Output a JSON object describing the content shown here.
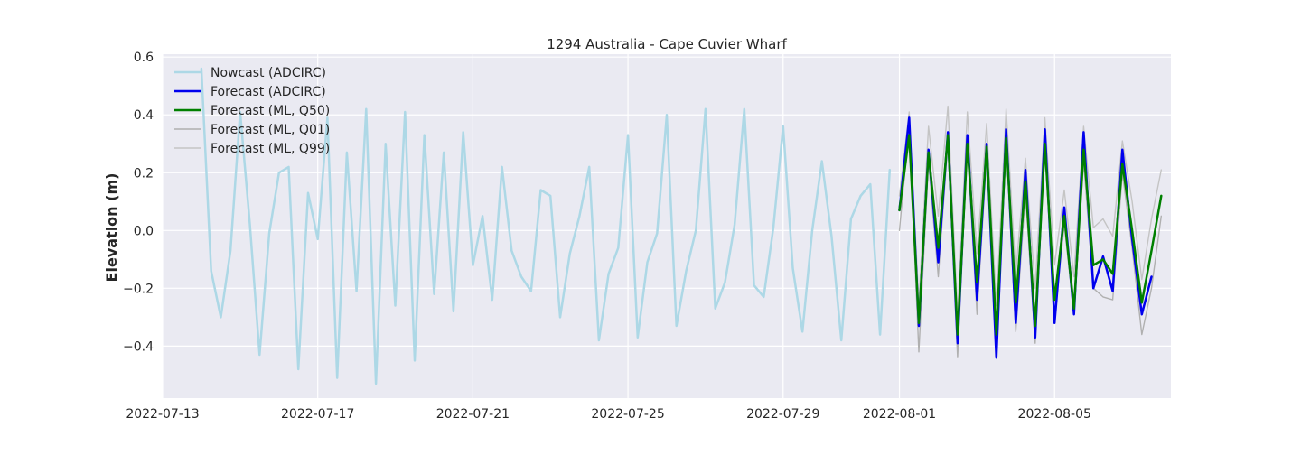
{
  "chart_data": {
    "type": "line",
    "title": "1294 Australia - Cape Cuvier Wharf",
    "xlabel": "",
    "ylabel": "Elevation (m)",
    "xlim": [
      "2022-07-13T00:00",
      "2022-08-08T00:00"
    ],
    "ylim": [
      -0.58,
      0.61
    ],
    "grid": true,
    "legend_position": "top-left",
    "x_ticks": [
      "2022-07-13",
      "2022-07-17",
      "2022-07-21",
      "2022-07-25",
      "2022-07-29",
      "2022-08-01",
      "2022-08-05"
    ],
    "y_ticks": [
      {
        "value": 0.6,
        "label": "0.6"
      },
      {
        "value": 0.4,
        "label": "0.4"
      },
      {
        "value": 0.2,
        "label": "0.2"
      },
      {
        "value": 0.0,
        "label": "0.0"
      },
      {
        "value": -0.2,
        "label": "−0.2"
      },
      {
        "value": -0.4,
        "label": "−0.4"
      }
    ],
    "series": [
      {
        "name": "Nowcast (ADCIRC)",
        "color": "#add8e6",
        "width": 2.5,
        "points": [
          [
            "2022-07-14T00:00",
            0.56
          ],
          [
            "2022-07-14T06:00",
            -0.14
          ],
          [
            "2022-07-14T12:00",
            -0.3
          ],
          [
            "2022-07-14T18:00",
            -0.07
          ],
          [
            "2022-07-15T00:00",
            0.41
          ],
          [
            "2022-07-15T06:00",
            0.02
          ],
          [
            "2022-07-15T12:00",
            -0.43
          ],
          [
            "2022-07-15T18:00",
            -0.01
          ],
          [
            "2022-07-16T00:00",
            0.2
          ],
          [
            "2022-07-16T06:00",
            0.22
          ],
          [
            "2022-07-16T12:00",
            -0.48
          ],
          [
            "2022-07-16T18:00",
            0.13
          ],
          [
            "2022-07-17T00:00",
            -0.03
          ],
          [
            "2022-07-17T06:00",
            0.39
          ],
          [
            "2022-07-17T12:00",
            -0.51
          ],
          [
            "2022-07-17T18:00",
            0.27
          ],
          [
            "2022-07-18T00:00",
            -0.21
          ],
          [
            "2022-07-18T06:00",
            0.42
          ],
          [
            "2022-07-18T12:00",
            -0.53
          ],
          [
            "2022-07-18T18:00",
            0.3
          ],
          [
            "2022-07-19T00:00",
            -0.26
          ],
          [
            "2022-07-19T06:00",
            0.41
          ],
          [
            "2022-07-19T12:00",
            -0.45
          ],
          [
            "2022-07-19T18:00",
            0.33
          ],
          [
            "2022-07-20T00:00",
            -0.22
          ],
          [
            "2022-07-20T06:00",
            0.27
          ],
          [
            "2022-07-20T12:00",
            -0.28
          ],
          [
            "2022-07-20T18:00",
            0.34
          ],
          [
            "2022-07-21T00:00",
            -0.12
          ],
          [
            "2022-07-21T06:00",
            0.05
          ],
          [
            "2022-07-21T12:00",
            -0.24
          ],
          [
            "2022-07-21T18:00",
            0.22
          ],
          [
            "2022-07-22T00:00",
            -0.07
          ],
          [
            "2022-07-22T06:00",
            -0.16
          ],
          [
            "2022-07-22T12:00",
            -0.21
          ],
          [
            "2022-07-22T18:00",
            0.14
          ],
          [
            "2022-07-23T00:00",
            0.12
          ],
          [
            "2022-07-23T06:00",
            -0.3
          ],
          [
            "2022-07-23T12:00",
            -0.08
          ],
          [
            "2022-07-23T18:00",
            0.05
          ],
          [
            "2022-07-24T00:00",
            0.22
          ],
          [
            "2022-07-24T06:00",
            -0.38
          ],
          [
            "2022-07-24T12:00",
            -0.15
          ],
          [
            "2022-07-24T18:00",
            -0.06
          ],
          [
            "2022-07-25T00:00",
            0.33
          ],
          [
            "2022-07-25T06:00",
            -0.37
          ],
          [
            "2022-07-25T12:00",
            -0.11
          ],
          [
            "2022-07-25T18:00",
            -0.01
          ],
          [
            "2022-07-26T00:00",
            0.4
          ],
          [
            "2022-07-26T06:00",
            -0.33
          ],
          [
            "2022-07-26T12:00",
            -0.14
          ],
          [
            "2022-07-26T18:00",
            0.0
          ],
          [
            "2022-07-27T00:00",
            0.42
          ],
          [
            "2022-07-27T06:00",
            -0.27
          ],
          [
            "2022-07-27T12:00",
            -0.18
          ],
          [
            "2022-07-27T18:00",
            0.02
          ],
          [
            "2022-07-28T00:00",
            0.42
          ],
          [
            "2022-07-28T06:00",
            -0.19
          ],
          [
            "2022-07-28T12:00",
            -0.23
          ],
          [
            "2022-07-28T18:00",
            0.01
          ],
          [
            "2022-07-29T00:00",
            0.36
          ],
          [
            "2022-07-29T06:00",
            -0.13
          ],
          [
            "2022-07-29T12:00",
            -0.35
          ],
          [
            "2022-07-29T18:00",
            0.0
          ],
          [
            "2022-07-30T00:00",
            0.24
          ],
          [
            "2022-07-30T06:00",
            -0.02
          ],
          [
            "2022-07-30T12:00",
            -0.38
          ],
          [
            "2022-07-30T18:00",
            0.04
          ],
          [
            "2022-07-31T00:00",
            0.12
          ],
          [
            "2022-07-31T06:00",
            0.16
          ],
          [
            "2022-07-31T12:00",
            -0.36
          ],
          [
            "2022-07-31T18:00",
            0.21
          ]
        ]
      },
      {
        "name": "Forecast (ML, Q01)",
        "color": "#b0b0b0",
        "width": 1.4,
        "points": [
          [
            "2022-08-01T00:00",
            0.0
          ],
          [
            "2022-08-01T06:00",
            0.36
          ],
          [
            "2022-08-01T12:00",
            -0.42
          ],
          [
            "2022-08-01T18:00",
            0.24
          ],
          [
            "2022-08-02T00:00",
            -0.16
          ],
          [
            "2022-08-02T06:00",
            0.31
          ],
          [
            "2022-08-02T12:00",
            -0.44
          ],
          [
            "2022-08-02T18:00",
            0.29
          ],
          [
            "2022-08-03T00:00",
            -0.29
          ],
          [
            "2022-08-03T06:00",
            0.26
          ],
          [
            "2022-08-03T12:00",
            -0.4
          ],
          [
            "2022-08-03T18:00",
            0.3
          ],
          [
            "2022-08-04T00:00",
            -0.35
          ],
          [
            "2022-08-04T06:00",
            0.13
          ],
          [
            "2022-08-04T12:00",
            -0.39
          ],
          [
            "2022-08-04T18:00",
            0.28
          ],
          [
            "2022-08-05T00:00",
            -0.3
          ],
          [
            "2022-08-05T06:00",
            0.02
          ],
          [
            "2022-08-05T12:00",
            -0.29
          ],
          [
            "2022-08-05T18:00",
            0.24
          ],
          [
            "2022-08-06T00:00",
            -0.2
          ],
          [
            "2022-08-06T06:00",
            -0.23
          ],
          [
            "2022-08-06T12:00",
            -0.24
          ],
          [
            "2022-08-06T18:00",
            0.2
          ],
          [
            "2022-08-07T00:00",
            -0.06
          ],
          [
            "2022-08-07T06:00",
            -0.36
          ],
          [
            "2022-08-07T12:00",
            -0.2
          ],
          [
            "2022-08-07T18:00",
            0.05
          ]
        ]
      },
      {
        "name": "Forecast (ML, Q99)",
        "color": "#c4c4c4",
        "width": 1.4,
        "points": [
          [
            "2022-08-01T00:00",
            0.12
          ],
          [
            "2022-08-01T06:00",
            0.41
          ],
          [
            "2022-08-01T12:00",
            -0.25
          ],
          [
            "2022-08-01T18:00",
            0.36
          ],
          [
            "2022-08-02T00:00",
            0.05
          ],
          [
            "2022-08-02T06:00",
            0.43
          ],
          [
            "2022-08-02T12:00",
            -0.29
          ],
          [
            "2022-08-02T18:00",
            0.41
          ],
          [
            "2022-08-03T00:00",
            -0.08
          ],
          [
            "2022-08-03T06:00",
            0.37
          ],
          [
            "2022-08-03T12:00",
            -0.26
          ],
          [
            "2022-08-03T18:00",
            0.42
          ],
          [
            "2022-08-04T00:00",
            -0.15
          ],
          [
            "2022-08-04T06:00",
            0.25
          ],
          [
            "2022-08-04T12:00",
            -0.2
          ],
          [
            "2022-08-04T18:00",
            0.39
          ],
          [
            "2022-08-05T00:00",
            -0.12
          ],
          [
            "2022-08-05T06:00",
            0.14
          ],
          [
            "2022-08-05T12:00",
            -0.16
          ],
          [
            "2022-08-05T18:00",
            0.36
          ],
          [
            "2022-08-06T00:00",
            0.01
          ],
          [
            "2022-08-06T06:00",
            0.04
          ],
          [
            "2022-08-06T12:00",
            -0.02
          ],
          [
            "2022-08-06T18:00",
            0.31
          ],
          [
            "2022-08-07T00:00",
            0.1
          ],
          [
            "2022-08-07T06:00",
            -0.17
          ],
          [
            "2022-08-07T12:00",
            0.04
          ],
          [
            "2022-08-07T18:00",
            0.21
          ]
        ]
      },
      {
        "name": "Forecast (ADCIRC)",
        "color": "#0000ee",
        "width": 2.5,
        "points": [
          [
            "2022-08-01T00:00",
            0.07
          ],
          [
            "2022-08-01T06:00",
            0.39
          ],
          [
            "2022-08-01T12:00",
            -0.33
          ],
          [
            "2022-08-01T18:00",
            0.28
          ],
          [
            "2022-08-02T00:00",
            -0.11
          ],
          [
            "2022-08-02T06:00",
            0.34
          ],
          [
            "2022-08-02T12:00",
            -0.39
          ],
          [
            "2022-08-02T18:00",
            0.33
          ],
          [
            "2022-08-03T00:00",
            -0.24
          ],
          [
            "2022-08-03T06:00",
            0.3
          ],
          [
            "2022-08-03T12:00",
            -0.44
          ],
          [
            "2022-08-03T18:00",
            0.35
          ],
          [
            "2022-08-04T00:00",
            -0.32
          ],
          [
            "2022-08-04T06:00",
            0.21
          ],
          [
            "2022-08-04T12:00",
            -0.37
          ],
          [
            "2022-08-04T18:00",
            0.35
          ],
          [
            "2022-08-05T00:00",
            -0.32
          ],
          [
            "2022-08-05T06:00",
            0.08
          ],
          [
            "2022-08-05T12:00",
            -0.29
          ],
          [
            "2022-08-05T18:00",
            0.34
          ],
          [
            "2022-08-06T00:00",
            -0.2
          ],
          [
            "2022-08-06T06:00",
            -0.09
          ],
          [
            "2022-08-06T12:00",
            -0.21
          ],
          [
            "2022-08-06T18:00",
            0.28
          ],
          [
            "2022-08-07T00:00",
            -0.03
          ],
          [
            "2022-08-07T06:00",
            -0.29
          ],
          [
            "2022-08-07T12:00",
            -0.16
          ]
        ]
      },
      {
        "name": "Forecast (ML, Q50)",
        "color": "#008000",
        "width": 2.5,
        "points": [
          [
            "2022-08-01T00:00",
            0.07
          ],
          [
            "2022-08-01T06:00",
            0.33
          ],
          [
            "2022-08-01T12:00",
            -0.32
          ],
          [
            "2022-08-01T18:00",
            0.27
          ],
          [
            "2022-08-02T00:00",
            -0.06
          ],
          [
            "2022-08-02T06:00",
            0.33
          ],
          [
            "2022-08-02T12:00",
            -0.36
          ],
          [
            "2022-08-02T18:00",
            0.3
          ],
          [
            "2022-08-03T00:00",
            -0.18
          ],
          [
            "2022-08-03T06:00",
            0.29
          ],
          [
            "2022-08-03T12:00",
            -0.36
          ],
          [
            "2022-08-03T18:00",
            0.32
          ],
          [
            "2022-08-04T00:00",
            -0.25
          ],
          [
            "2022-08-04T06:00",
            0.17
          ],
          [
            "2022-08-04T12:00",
            -0.33
          ],
          [
            "2022-08-04T18:00",
            0.3
          ],
          [
            "2022-08-05T00:00",
            -0.24
          ],
          [
            "2022-08-05T06:00",
            0.05
          ],
          [
            "2022-08-05T12:00",
            -0.27
          ],
          [
            "2022-08-05T18:00",
            0.28
          ],
          [
            "2022-08-06T00:00",
            -0.12
          ],
          [
            "2022-08-06T06:00",
            -0.1
          ],
          [
            "2022-08-06T12:00",
            -0.15
          ],
          [
            "2022-08-06T18:00",
            0.23
          ],
          [
            "2022-08-07T00:00",
            0.0
          ],
          [
            "2022-08-07T06:00",
            -0.25
          ],
          [
            "2022-08-07T12:00",
            -0.07
          ],
          [
            "2022-08-07T18:00",
            0.12
          ]
        ]
      }
    ],
    "legend": [
      {
        "label": "Nowcast (ADCIRC)",
        "color": "#add8e6"
      },
      {
        "label": "Forecast (ADCIRC)",
        "color": "#0000ee"
      },
      {
        "label": "Forecast (ML, Q50)",
        "color": "#008000"
      },
      {
        "label": "Forecast (ML, Q01)",
        "color": "#b0b0b0"
      },
      {
        "label": "Forecast (ML, Q99)",
        "color": "#c4c4c4"
      }
    ],
    "colors": {
      "plot_background": "#eaeaf2",
      "grid": "#ffffff",
      "text": "#262626"
    }
  }
}
